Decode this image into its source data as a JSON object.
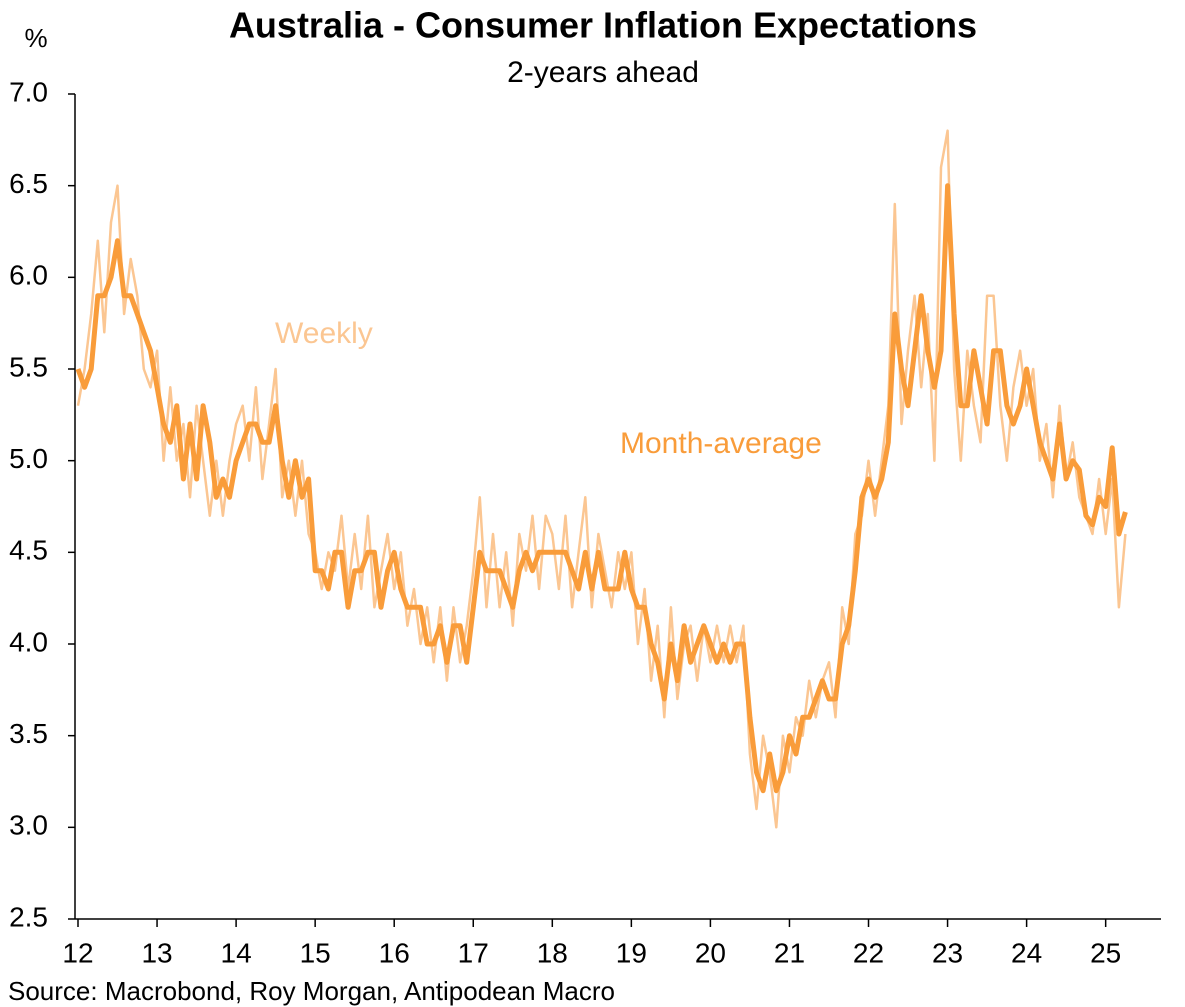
{
  "chart_data": {
    "type": "line",
    "title": "Australia - Consumer Inflation Expectations",
    "subtitle": "2-years ahead",
    "y_axis_label": "%",
    "source": "Source: Macrobond, Roy Morgan, Antipodean Macro",
    "grid": false,
    "x": [
      12,
      12.083,
      12.167,
      12.25,
      12.333,
      12.417,
      12.5,
      12.583,
      12.667,
      12.75,
      12.833,
      12.917,
      13,
      13.083,
      13.167,
      13.25,
      13.333,
      13.417,
      13.5,
      13.583,
      13.667,
      13.75,
      13.833,
      13.917,
      14,
      14.083,
      14.167,
      14.25,
      14.333,
      14.417,
      14.5,
      14.583,
      14.667,
      14.75,
      14.833,
      14.917,
      15,
      15.083,
      15.167,
      15.25,
      15.333,
      15.417,
      15.5,
      15.583,
      15.667,
      15.75,
      15.833,
      15.917,
      16,
      16.083,
      16.167,
      16.25,
      16.333,
      16.417,
      16.5,
      16.583,
      16.667,
      16.75,
      16.833,
      16.917,
      17,
      17.083,
      17.167,
      17.25,
      17.333,
      17.417,
      17.5,
      17.583,
      17.667,
      17.75,
      17.833,
      17.917,
      18,
      18.083,
      18.167,
      18.25,
      18.333,
      18.417,
      18.5,
      18.583,
      18.667,
      18.75,
      18.833,
      18.917,
      19,
      19.083,
      19.167,
      19.25,
      19.333,
      19.417,
      19.5,
      19.583,
      19.667,
      19.75,
      19.833,
      19.917,
      20,
      20.083,
      20.167,
      20.25,
      20.333,
      20.417,
      20.5,
      20.583,
      20.667,
      20.75,
      20.833,
      20.917,
      21,
      21.083,
      21.167,
      21.25,
      21.333,
      21.417,
      21.5,
      21.583,
      21.667,
      21.75,
      21.833,
      21.917,
      22,
      22.083,
      22.167,
      22.25,
      22.333,
      22.417,
      22.5,
      22.583,
      22.667,
      22.75,
      22.833,
      22.917,
      23,
      23.083,
      23.167,
      23.25,
      23.333,
      23.417,
      23.5,
      23.583,
      23.667,
      23.75,
      23.833,
      23.917,
      24,
      24.083,
      24.167,
      24.25,
      24.333,
      24.417,
      24.5,
      24.583,
      24.667,
      24.75,
      24.833,
      24.917,
      25,
      25.083,
      25.167,
      25.25
    ],
    "series": [
      {
        "name": "Weekly",
        "color": "#fbc692",
        "width": 2.5,
        "values": [
          5.3,
          5.5,
          5.8,
          6.2,
          5.7,
          6.3,
          6.5,
          5.8,
          6.1,
          5.9,
          5.5,
          5.4,
          5.6,
          5.0,
          5.4,
          5.0,
          5.2,
          4.8,
          5.3,
          5.0,
          4.7,
          5.0,
          4.7,
          5.0,
          5.2,
          5.3,
          5.0,
          5.4,
          4.9,
          5.2,
          5.5,
          4.8,
          5.0,
          4.7,
          5.0,
          4.6,
          4.5,
          4.3,
          4.5,
          4.4,
          4.7,
          4.3,
          4.6,
          4.3,
          4.7,
          4.2,
          4.4,
          4.6,
          4.3,
          4.5,
          4.1,
          4.3,
          4.0,
          4.2,
          3.9,
          4.2,
          3.8,
          4.2,
          3.9,
          4.1,
          4.4,
          4.8,
          4.2,
          4.6,
          4.2,
          4.5,
          4.1,
          4.6,
          4.4,
          4.7,
          4.3,
          4.7,
          4.6,
          4.3,
          4.7,
          4.2,
          4.5,
          4.8,
          4.2,
          4.6,
          4.4,
          4.2,
          4.5,
          4.3,
          4.5,
          4.0,
          4.3,
          3.8,
          4.1,
          3.6,
          4.2,
          3.7,
          4.0,
          4.1,
          3.8,
          4.1,
          3.9,
          4.1,
          3.9,
          4.1,
          3.9,
          4.1,
          3.4,
          3.1,
          3.5,
          3.3,
          3.0,
          3.5,
          3.3,
          3.6,
          3.5,
          3.8,
          3.6,
          3.8,
          3.9,
          3.6,
          4.2,
          4.0,
          4.6,
          4.7,
          5.0,
          4.7,
          5.0,
          5.3,
          6.4,
          5.2,
          5.6,
          5.9,
          5.4,
          5.8,
          5.0,
          6.6,
          6.8,
          5.5,
          5.0,
          5.6,
          5.3,
          5.1,
          5.9,
          5.9,
          5.3,
          5.0,
          5.4,
          5.6,
          5.3,
          5.5,
          5.0,
          5.2,
          4.8,
          5.3,
          4.9,
          5.1,
          4.8,
          4.7,
          4.6,
          4.9,
          4.6,
          4.9,
          4.2,
          4.6
        ]
      },
      {
        "name": "Month-average",
        "color": "#f99c3a",
        "width": 5,
        "values": [
          5.5,
          5.4,
          5.5,
          5.9,
          5.9,
          6.0,
          6.2,
          5.9,
          5.9,
          5.8,
          5.7,
          5.6,
          5.4,
          5.2,
          5.1,
          5.3,
          4.9,
          5.2,
          4.9,
          5.3,
          5.1,
          4.8,
          4.9,
          4.8,
          5.0,
          5.1,
          5.2,
          5.2,
          5.1,
          5.1,
          5.3,
          5.0,
          4.8,
          5.0,
          4.8,
          4.9,
          4.4,
          4.4,
          4.3,
          4.5,
          4.5,
          4.2,
          4.4,
          4.4,
          4.5,
          4.5,
          4.2,
          4.4,
          4.5,
          4.3,
          4.2,
          4.2,
          4.2,
          4.0,
          4.0,
          4.1,
          3.9,
          4.1,
          4.1,
          3.9,
          4.2,
          4.5,
          4.4,
          4.4,
          4.4,
          4.3,
          4.2,
          4.4,
          4.5,
          4.4,
          4.5,
          4.5,
          4.5,
          4.5,
          4.5,
          4.4,
          4.3,
          4.5,
          4.3,
          4.5,
          4.3,
          4.3,
          4.3,
          4.5,
          4.3,
          4.2,
          4.2,
          4.0,
          3.9,
          3.7,
          4.0,
          3.8,
          4.1,
          3.9,
          4.0,
          4.1,
          4.0,
          3.9,
          4.0,
          3.9,
          4.0,
          4.0,
          3.6,
          3.3,
          3.2,
          3.4,
          3.2,
          3.3,
          3.5,
          3.4,
          3.6,
          3.6,
          3.7,
          3.8,
          3.7,
          3.7,
          4.0,
          4.1,
          4.4,
          4.8,
          4.9,
          4.8,
          4.9,
          5.1,
          5.8,
          5.5,
          5.3,
          5.6,
          5.9,
          5.6,
          5.4,
          5.6,
          6.5,
          5.8,
          5.3,
          5.3,
          5.6,
          5.4,
          5.2,
          5.6,
          5.6,
          5.3,
          5.2,
          5.3,
          5.5,
          5.3,
          5.1,
          5.0,
          4.9,
          5.2,
          4.9,
          5.0,
          4.95,
          4.7,
          4.65,
          4.8,
          4.75,
          5.07,
          4.6,
          4.72
        ]
      }
    ],
    "xlim": [
      12,
      25.7
    ],
    "xticks": [
      12,
      13,
      14,
      15,
      16,
      17,
      18,
      19,
      20,
      21,
      22,
      23,
      24,
      25
    ],
    "ylim": [
      2.5,
      7.0
    ],
    "yticks": [
      2.5,
      {
        "value": 3.0,
        "label": "3.0"
      },
      3.5,
      {
        "value": 4.0,
        "label": "4.0"
      },
      4.5,
      {
        "value": 5.0,
        "label": "5.0"
      },
      5.5,
      {
        "value": 6.0,
        "label": "6.0"
      },
      6.5,
      {
        "value": 7.0,
        "label": "7.0"
      }
    ]
  }
}
